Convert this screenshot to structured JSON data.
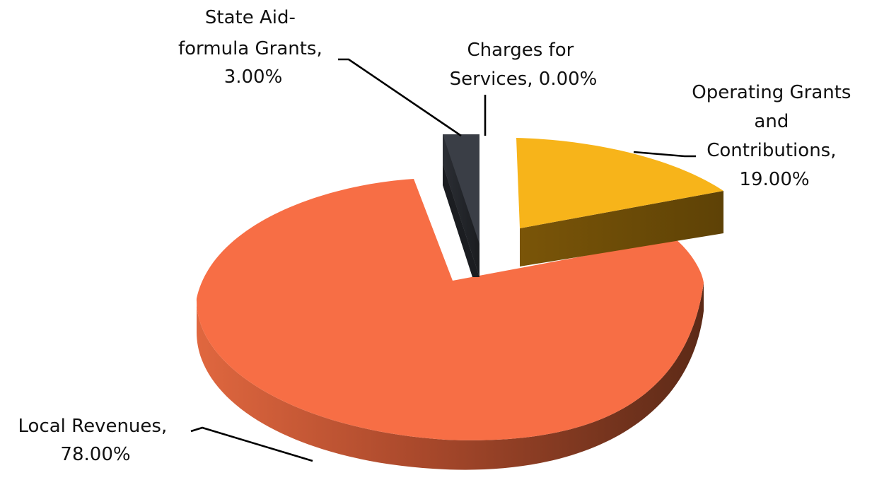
{
  "chart_data": {
    "type": "pie",
    "title": "",
    "style": "3d-exploded",
    "start_at": "top-center, clockwise",
    "slices": [
      {
        "name": "Charges for Services",
        "value": 0.0,
        "label": [
          "Charges for",
          "Services, 0.00%"
        ],
        "color": "#ffffff"
      },
      {
        "name": "Operating Grants and Contributions",
        "value": 19.0,
        "label": [
          "Operating Grants",
          "and",
          "Contributions,",
          "19.00%"
        ],
        "color": "#F7B41A"
      },
      {
        "name": "Local Revenues",
        "value": 78.0,
        "label": [
          "Local Revenues,",
          "78.00%"
        ],
        "color": "#F76E45"
      },
      {
        "name": "State Aid-formula Grants",
        "value": 3.0,
        "label": [
          "State Aid-",
          "formula Grants,",
          "3.00%"
        ],
        "color": "#363A42"
      }
    ]
  }
}
